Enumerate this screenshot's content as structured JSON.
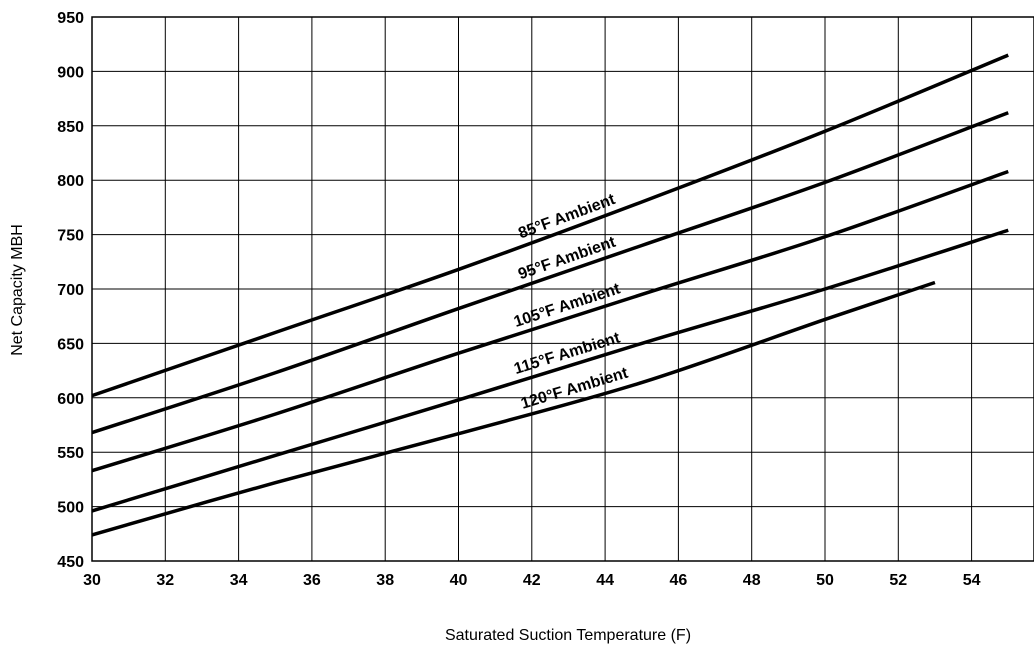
{
  "chart_data": {
    "type": "line",
    "title": "",
    "xlabel": "Saturated Suction Temperature (F)",
    "ylabel": "Net Capacity MBH",
    "xlim": [
      30,
      55
    ],
    "ylim": [
      450,
      950
    ],
    "x_ticks": [
      30,
      32,
      34,
      36,
      38,
      40,
      42,
      44,
      46,
      48,
      50,
      52,
      54
    ],
    "y_ticks": [
      450,
      500,
      550,
      600,
      650,
      700,
      750,
      800,
      850,
      900,
      950
    ],
    "grid": true,
    "legend": "none",
    "series": [
      {
        "name": "85°F Ambient",
        "x": [
          30,
          35,
          40,
          45,
          50,
          55
        ],
        "y": [
          602,
          660,
          718,
          780,
          845,
          915
        ]
      },
      {
        "name": "95°F Ambient",
        "x": [
          30,
          35,
          40,
          45,
          50,
          55
        ],
        "y": [
          568,
          623,
          682,
          740,
          798,
          862
        ]
      },
      {
        "name": "105°F Ambient",
        "x": [
          30,
          35,
          40,
          45,
          50,
          55
        ],
        "y": [
          533,
          585,
          641,
          695,
          748,
          808
        ]
      },
      {
        "name": "115°F Ambient",
        "x": [
          30,
          35,
          40,
          45,
          50,
          55
        ],
        "y": [
          496,
          547,
          598,
          650,
          700,
          754
        ]
      },
      {
        "name": "120°F Ambient",
        "x": [
          30,
          35,
          40,
          45,
          50,
          53
        ],
        "y": [
          474,
          522,
          567,
          614,
          672,
          706
        ]
      }
    ]
  }
}
